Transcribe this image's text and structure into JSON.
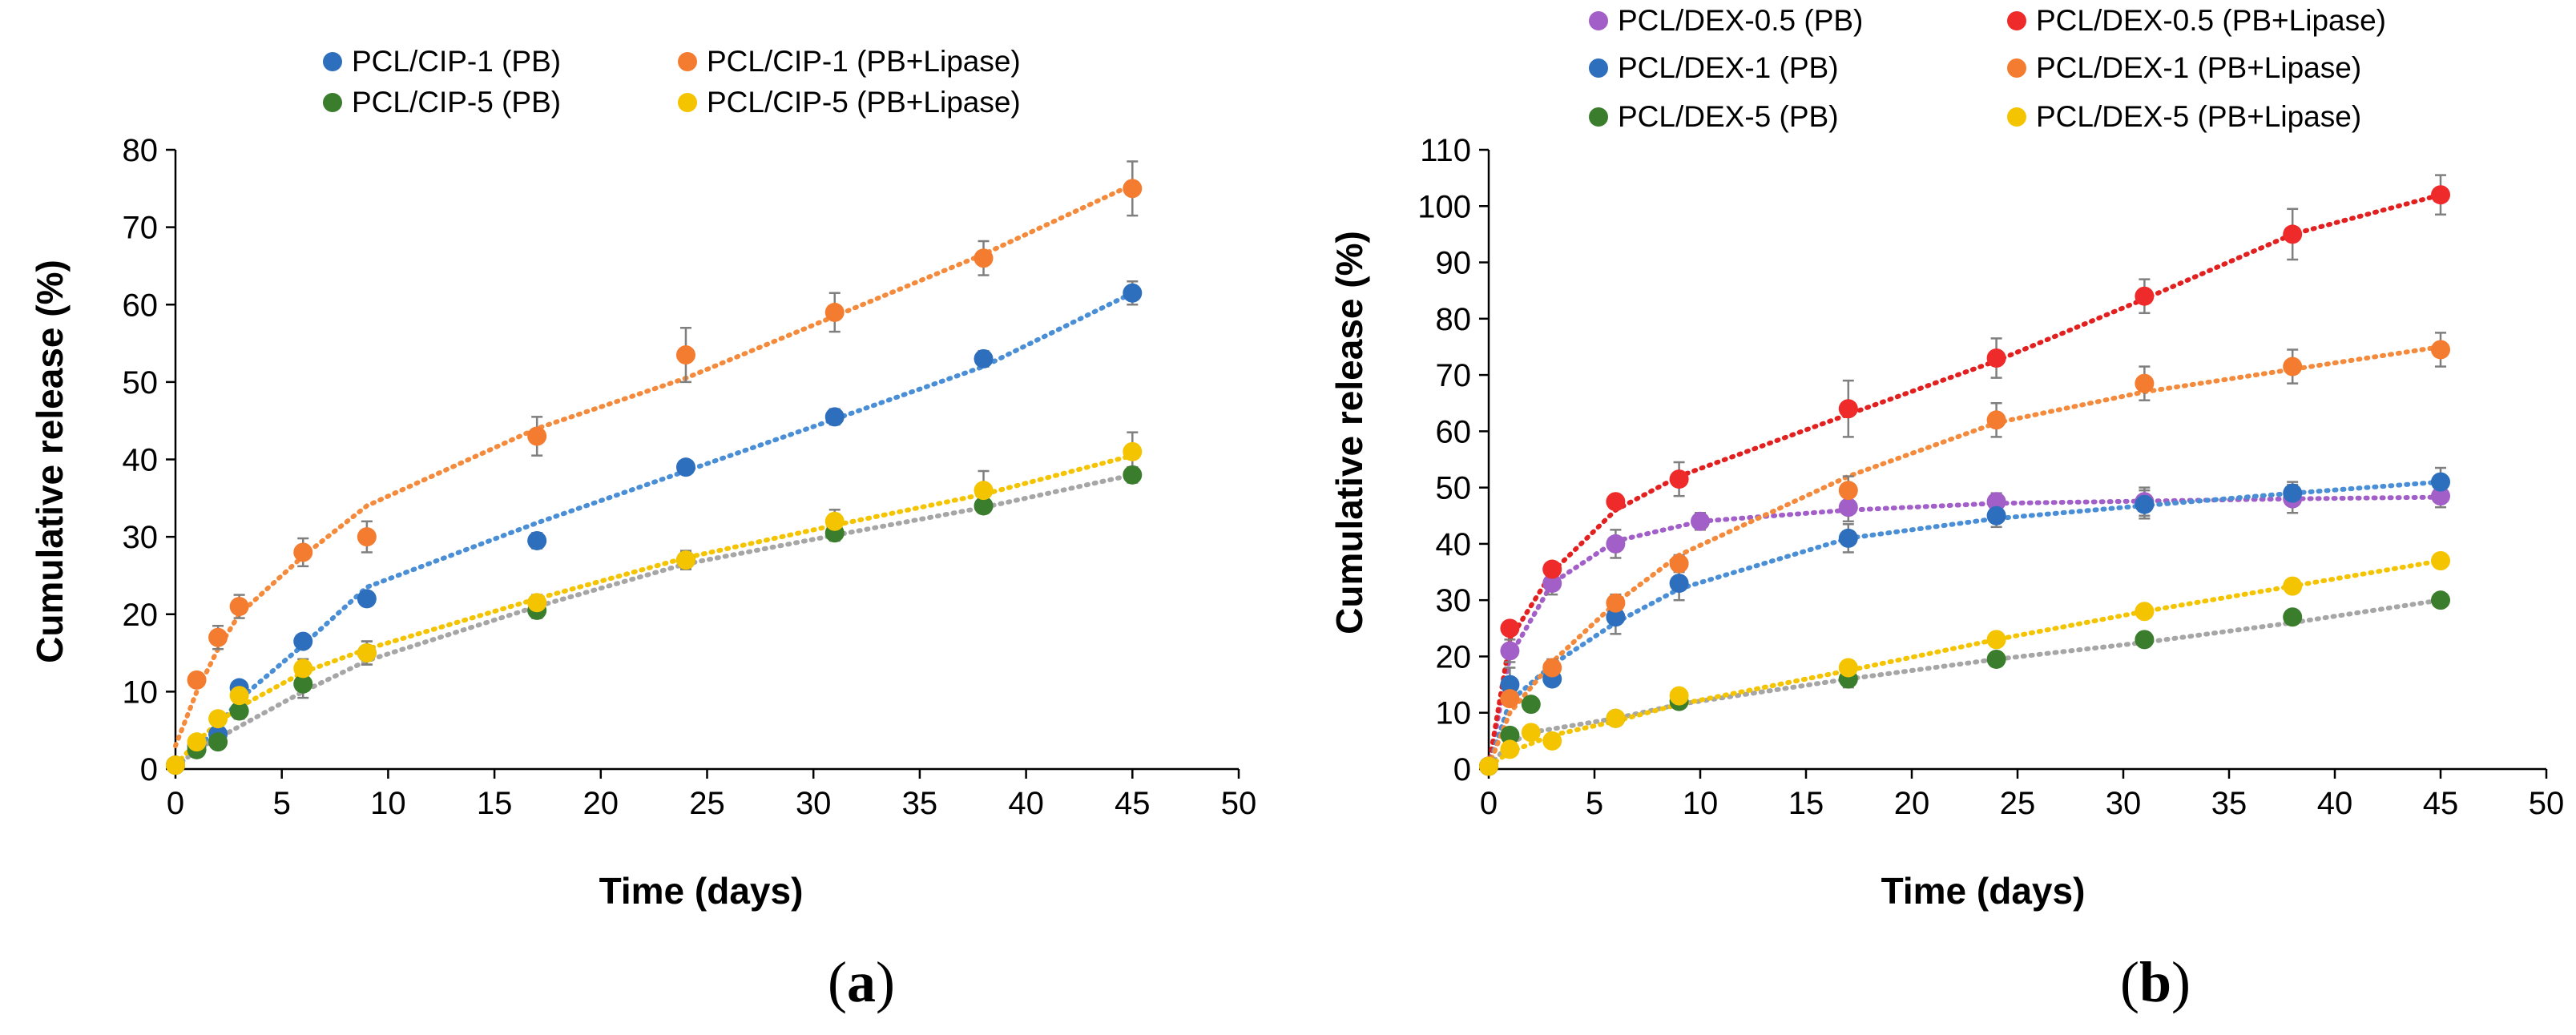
{
  "chart_data": [
    {
      "type": "scatter",
      "panel_label_open": "(",
      "panel_label_letter": "a",
      "panel_label_close": ")",
      "xlabel": "Time (days)",
      "ylabel": "Cumulative release (%)",
      "xlim": [
        0,
        50
      ],
      "ylim": [
        0,
        80
      ],
      "xticks": [
        0,
        5,
        10,
        15,
        20,
        25,
        30,
        35,
        40,
        45,
        50
      ],
      "yticks": [
        0,
        10,
        20,
        30,
        40,
        50,
        60,
        70,
        80
      ],
      "grid": false,
      "legend_position": "top",
      "series": [
        {
          "name": "PCL/CIP-1 (PB)",
          "color": "#2e6fbd",
          "x": [
            0,
            1,
            2,
            3,
            6,
            9,
            17,
            24,
            31,
            38,
            45
          ],
          "y": [
            0.5,
            3,
            4.5,
            10.5,
            16.5,
            22,
            29.5,
            39,
            45.5,
            53,
            61.5
          ],
          "err": [
            0,
            0,
            0,
            0.5,
            0.5,
            0,
            1,
            0,
            1,
            1,
            1.5
          ],
          "fit": [
            0.3,
            2.5,
            5.5,
            9,
            16,
            23.5,
            31.8,
            38.5,
            45.2,
            52,
            61.5
          ],
          "fit_color": "#4a8fd6"
        },
        {
          "name": "PCL/CIP-1 (PB+Lipase)",
          "color": "#f47c30",
          "x": [
            0,
            1,
            2,
            3,
            6,
            9,
            17,
            24,
            31,
            38,
            45
          ],
          "y": [
            0.5,
            11.5,
            17,
            21,
            28,
            30,
            43,
            53.5,
            59,
            66,
            75
          ],
          "err": [
            0,
            0,
            1.5,
            1.5,
            1.8,
            2,
            2.5,
            3.5,
            2.5,
            2.2,
            3.5
          ],
          "fit": [
            3,
            10,
            15.5,
            20,
            27.5,
            34,
            44,
            50.5,
            58.5,
            66.5,
            75.5
          ],
          "fit_color": "#f48a3c"
        },
        {
          "name": "PCL/CIP-5 (PB)",
          "color": "#3a7d2c",
          "x": [
            0,
            1,
            2,
            3,
            6,
            9,
            17,
            24,
            31,
            38,
            45
          ],
          "y": [
            0.5,
            2.5,
            3.5,
            7.5,
            11,
            15,
            20.5,
            27,
            30.5,
            34,
            38
          ],
          "err": [
            0,
            0,
            0.8,
            1,
            1.8,
            1.5,
            1,
            1,
            1,
            0.8,
            1
          ],
          "fit": [
            0.2,
            2.5,
            4,
            5.5,
            10,
            14,
            21,
            26.5,
            30.2,
            33.8,
            38
          ],
          "fit_color": "#a6a6a6"
        },
        {
          "name": "PCL/CIP-5 (PB+Lipase)",
          "color": "#f5c400",
          "x": [
            0,
            1,
            2,
            3,
            6,
            9,
            17,
            24,
            31,
            38,
            45
          ],
          "y": [
            0.5,
            3.5,
            6.5,
            9.5,
            13,
            15,
            21.5,
            27,
            32,
            36,
            41
          ],
          "err": [
            0,
            0,
            0,
            1,
            1.2,
            1.5,
            1,
            1.2,
            1.5,
            2.5,
            2.5
          ],
          "fit": [
            0.5,
            3.5,
            6,
            8,
            12.5,
            15.5,
            22,
            27.3,
            31.5,
            35.5,
            40.5
          ],
          "fit_color": "#f5c400"
        }
      ]
    },
    {
      "type": "scatter",
      "panel_label_open": "(",
      "panel_label_letter": "b",
      "panel_label_close": ")",
      "xlabel": "Time (days)",
      "ylabel": "Cumulative release (%)",
      "xlim": [
        0,
        50
      ],
      "ylim": [
        0,
        110
      ],
      "xticks": [
        0,
        5,
        10,
        15,
        20,
        25,
        30,
        35,
        40,
        45,
        50
      ],
      "yticks": [
        0,
        10,
        20,
        30,
        40,
        50,
        60,
        70,
        80,
        90,
        100,
        110
      ],
      "grid": false,
      "legend_position": "top",
      "series": [
        {
          "name": "PCL/DEX-0.5 (PB)",
          "color": "#a25fc7",
          "x": [
            0,
            1,
            3,
            6,
            10,
            17,
            24,
            31,
            38,
            45
          ],
          "y": [
            0.5,
            21,
            33,
            40,
            44,
            46.5,
            47.5,
            47.5,
            48,
            48.5
          ],
          "err": [
            0,
            2,
            2,
            2.5,
            1.5,
            2.5,
            1.5,
            2.5,
            2.5,
            2
          ],
          "fit": [
            0.5,
            20,
            33,
            40.5,
            44,
            46,
            47.2,
            47.6,
            48,
            48.3
          ],
          "fit_color": "#a25fc7"
        },
        {
          "name": "PCL/DEX-0.5 (PB+Lipase)",
          "color": "#ee2a2a",
          "x": [
            0,
            1,
            3,
            6,
            9,
            17,
            24,
            31,
            38,
            45
          ],
          "y": [
            0.5,
            25,
            35.5,
            47.5,
            51.5,
            64,
            73,
            84,
            95,
            102
          ],
          "err": [
            0,
            0,
            0,
            0,
            3,
            5,
            3.5,
            3,
            4.5,
            3.5
          ],
          "fit": [
            0.5,
            23,
            35,
            46,
            52,
            63,
            72.5,
            83.5,
            95,
            102
          ],
          "fit_color": "#e32020"
        },
        {
          "name": "PCL/DEX-1 (PB)",
          "color": "#2e6fbd",
          "x": [
            0,
            1,
            3,
            6,
            9,
            17,
            24,
            31,
            38,
            45
          ],
          "y": [
            0.5,
            15,
            16,
            27,
            33,
            41,
            45,
            47,
            49,
            51
          ],
          "err": [
            0,
            3,
            0,
            3,
            3,
            2.5,
            2,
            2.5,
            2,
            2.5
          ],
          "fit": [
            0.5,
            12,
            18.5,
            26,
            32,
            41,
            44.5,
            46.8,
            49,
            51
          ],
          "fit_color": "#4a8fd6"
        },
        {
          "name": "PCL/DEX-1 (PB+Lipase)",
          "color": "#f47c30",
          "x": [
            0,
            1,
            3,
            6,
            9,
            17,
            24,
            31,
            38,
            45
          ],
          "y": [
            0.5,
            12.5,
            18,
            29.5,
            36.5,
            49.5,
            62,
            68.5,
            71.5,
            74.5
          ],
          "err": [
            0,
            0,
            1.5,
            1.5,
            1.5,
            2.5,
            3,
            3,
            3,
            3
          ],
          "fit": [
            0.5,
            10,
            19,
            29.5,
            38,
            52,
            61.5,
            67,
            71,
            75
          ],
          "fit_color": "#f48a3c"
        },
        {
          "name": "PCL/DEX-5 (PB)",
          "color": "#3a7d2c",
          "x": [
            0,
            1,
            2,
            6,
            9,
            17,
            24,
            31,
            38,
            45
          ],
          "y": [
            0.5,
            6,
            11.5,
            9,
            12,
            16,
            19.5,
            23,
            27,
            30
          ],
          "err": [
            0,
            0,
            0,
            0,
            1,
            1.5,
            1,
            1,
            1,
            1.2
          ],
          "fit": [
            0.5,
            4.5,
            6.5,
            9,
            11.5,
            16,
            19.5,
            22.5,
            26,
            30
          ],
          "fit_color": "#a6a6a6"
        },
        {
          "name": "PCL/DEX-5 (PB+Lipase)",
          "color": "#f5c400",
          "x": [
            0,
            1,
            2,
            3,
            6,
            9,
            17,
            24,
            31,
            38,
            45
          ],
          "y": [
            0.5,
            3.5,
            6.5,
            5,
            9,
            13,
            18,
            23,
            28,
            32.5,
            37
          ],
          "err": [
            0,
            0,
            0,
            0,
            0,
            0,
            0,
            0,
            0,
            1,
            0
          ],
          "fit": [
            0.5,
            3,
            4.5,
            6,
            8.5,
            11.5,
            17.5,
            23,
            28,
            32.5,
            37
          ],
          "fit_color": "#f5c400"
        }
      ]
    }
  ]
}
